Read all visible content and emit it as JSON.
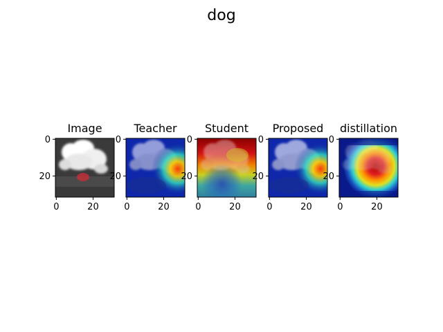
{
  "figure": {
    "title": "dog"
  },
  "chart_data": {
    "type": "heatmap",
    "title": "dog",
    "panels": [
      {
        "name": "Image",
        "title": "Image",
        "kind": "grayscale-image",
        "overlay_color": "#c0303a"
      },
      {
        "name": "Teacher",
        "title": "Teacher",
        "kind": "image-with-heatmap",
        "colormap": "jet",
        "hotspot": "right-middle"
      },
      {
        "name": "Student",
        "title": "Student",
        "kind": "image-with-heatmap",
        "colormap": "jet",
        "hotspot": "upper band"
      },
      {
        "name": "Proposed",
        "title": "Proposed",
        "kind": "image-with-heatmap",
        "colormap": "jet",
        "hotspot": "right-middle"
      },
      {
        "name": "distillation",
        "title": "distillation",
        "kind": "image-with-heatmap",
        "colormap": "jet",
        "hotspot": "center-right"
      }
    ],
    "xticks": [
      0,
      20
    ],
    "yticks": [
      0,
      20
    ],
    "xlim": [
      -0.5,
      31.5
    ],
    "ylim": [
      31.5,
      -0.5
    ],
    "grid": false
  }
}
